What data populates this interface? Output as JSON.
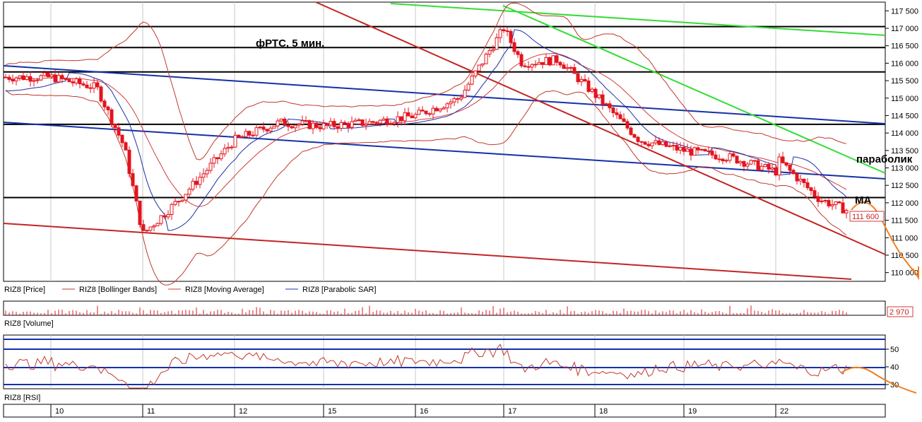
{
  "chart_data": [
    {
      "type": "candlestick",
      "instrument": "RIZ8",
      "title": "фРТС, 5 мин.",
      "x_date_labels": [
        "10",
        "11",
        "12",
        "15",
        "16",
        "17",
        "18",
        "19",
        "22"
      ],
      "ylim": [
        109750,
        117750
      ],
      "y_tick_labels": [
        "117 500",
        "117 000",
        "116 500",
        "116 000",
        "115 500",
        "115 000",
        "114 500",
        "114 000",
        "113 500",
        "113 000",
        "112 500",
        "112 000",
        "111 500",
        "111 000",
        "110 500",
        "110 000"
      ],
      "last_price_label": "111 600",
      "legend": [
        "RIZ8 [Price]",
        "RIZ8 [Bollinger Bands]",
        "RIZ8 [Moving Average]",
        "RIZ8 [Parabolic SAR]"
      ],
      "annotations": [
        "параболик",
        "MA"
      ],
      "approx_close_path": [
        {
          "x": "10",
          "y": 115600
        },
        {
          "x": "10.5",
          "y": 115300
        },
        {
          "x": "10.8",
          "y": 113600
        },
        {
          "x": "11",
          "y": 111100
        },
        {
          "x": "11.4",
          "y": 112100
        },
        {
          "x": "12",
          "y": 113800
        },
        {
          "x": "12.5",
          "y": 114300
        },
        {
          "x": "15",
          "y": 114200
        },
        {
          "x": "15.5",
          "y": 114300
        },
        {
          "x": "16",
          "y": 114500
        },
        {
          "x": "16.5",
          "y": 115000
        },
        {
          "x": "17",
          "y": 117000
        },
        {
          "x": "17.2",
          "y": 116000
        },
        {
          "x": "17.6",
          "y": 116100
        },
        {
          "x": "18",
          "y": 115100
        },
        {
          "x": "18.5",
          "y": 113800
        },
        {
          "x": "19",
          "y": 113500
        },
        {
          "x": "19.5",
          "y": 113300
        },
        {
          "x": "20",
          "y": 112900
        },
        {
          "x": "21",
          "y": 113000
        },
        {
          "x": "22",
          "y": 113300
        },
        {
          "x": "22.4",
          "y": 112100
        },
        {
          "x": "22.8",
          "y": 111600
        }
      ],
      "horizontal_levels": [
        117050,
        116450,
        115750,
        114250,
        112150
      ],
      "colors": {
        "up": "#ffffff",
        "down": "#e3141e",
        "bollinger": "#c0392b",
        "moving_average": "#d23b3b",
        "parabolic_sar": "#1f2fa8",
        "channel_blue": "#1431a8",
        "trend_green": "#33dd33",
        "channel_red": "#c42424",
        "forecast": "#f07f1e",
        "levels": "#000000"
      }
    },
    {
      "type": "bar",
      "title": "RIZ8 [Volume]",
      "last_value_label": "2 970"
    },
    {
      "type": "line",
      "title": "RIZ8 [RSI]",
      "ylim": [
        25,
        60
      ],
      "y_tick_labels": [
        "50",
        "40",
        "30"
      ]
    }
  ]
}
